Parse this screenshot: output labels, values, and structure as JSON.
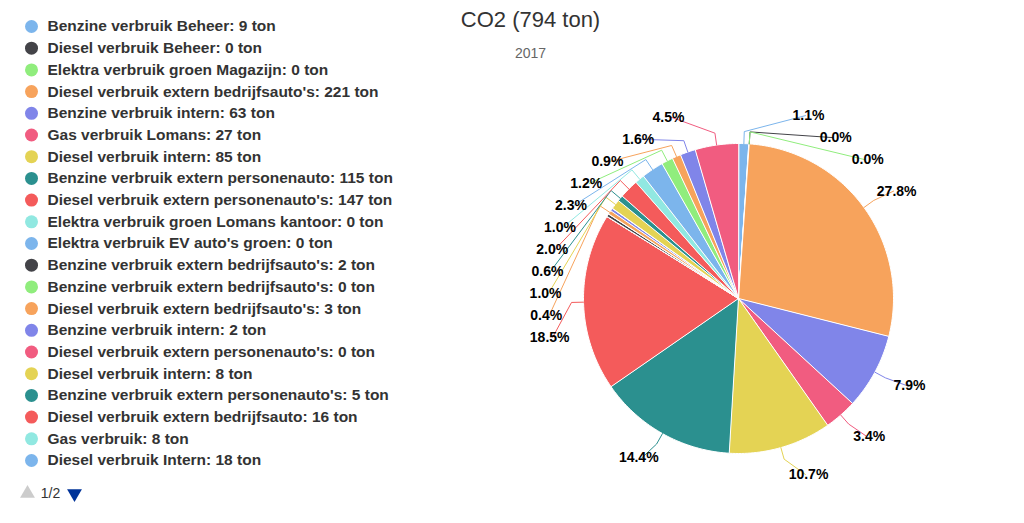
{
  "chart_data": {
    "type": "pie",
    "title": "CO2 (794 ton)",
    "subtitle": "2017",
    "categories": [
      "Benzine verbruik Beheer: 9 ton",
      "Diesel verbruik Beheer: 0 ton",
      "Elektra verbruik groen Magazijn: 0 ton",
      "Diesel verbruik extern bedrijfsauto's: 221 ton",
      "Benzine verbruik intern: 63 ton",
      "Gas verbruik Lomans: 27 ton",
      "Diesel verbruik intern: 85 ton",
      "Benzine verbruik extern personenauto: 115 ton",
      "Diesel verbruik extern personenauto's: 147 ton",
      "Elektra verbruik groen Lomans kantoor: 0 ton",
      "Elektra verbruik EV auto's groen: 0 ton",
      "Benzine verbruik extern bedrijfsauto's: 2 ton",
      "Benzine verbruik extern bedrijfsauto's: 0 ton",
      "Diesel verbruik extern bedrijfsauto's: 3 ton",
      "Benzine verbruik intern: 2 ton",
      "Diesel verbruik extern personenauto's: 0 ton",
      "Diesel verbruik intern: 8 ton",
      "Benzine verbruik extern personenauto's: 5 ton",
      "Diesel verbruik extern bedrijfsauto: 16 ton",
      "Gas verbruik: 8 ton",
      "Diesel verbruik Intern: 18 ton",
      null,
      null,
      null,
      null
    ],
    "values": [
      1.1,
      0.0,
      0.0,
      27.8,
      7.9,
      3.4,
      10.7,
      14.4,
      18.5,
      0,
      0,
      0.3,
      0,
      0.4,
      0.3,
      0,
      1.0,
      0.6,
      2.0,
      1.0,
      2.3,
      1.2,
      0.9,
      1.6,
      4.5
    ],
    "value_labels": [
      "1.1%",
      "0.0%",
      "0.0%",
      "27.8%",
      "7.9%",
      "3.4%",
      "10.7%",
      "14.4%",
      "18.5%",
      null,
      null,
      null,
      null,
      "0.4%",
      null,
      null,
      "1.0%",
      "0.6%",
      "2.0%",
      "1.0%",
      "2.3%",
      "1.2%",
      "0.9%",
      "1.6%",
      "4.5%"
    ],
    "colors": [
      "#7cb5ec",
      "#434348",
      "#90ed7d",
      "#f7a35c",
      "#8085e9",
      "#f15c80",
      "#e4d354",
      "#2b908f",
      "#f45b5b",
      "#91e8e1",
      "#7cb5ec",
      "#434348",
      "#90ed7d",
      "#f7a35c",
      "#8085e9",
      "#f15c80",
      "#e4d354",
      "#2b908f",
      "#f45b5b",
      "#91e8e1",
      "#7cb5ec",
      "#90ed7d",
      "#f7a35c",
      "#8085e9",
      "#f15c80"
    ],
    "data_labels": true,
    "legend": "left",
    "legend_pager": "1/2"
  }
}
